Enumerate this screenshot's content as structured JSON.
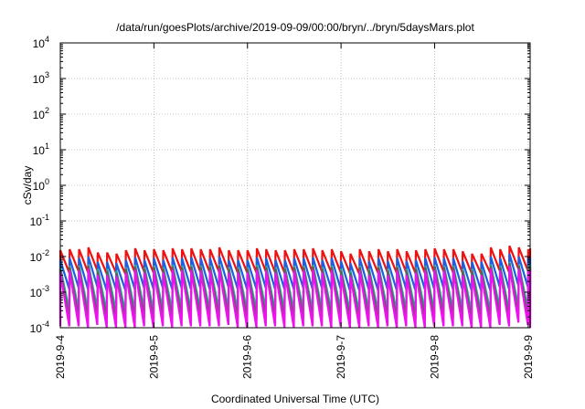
{
  "chart_data": {
    "type": "line",
    "title": "/data/run/goesPlots/archive/2019-09-09/00:00/bryn/../bryn/5daysMars.plot",
    "xlabel": "Coordinated Universal Time (UTC)",
    "ylabel": "cSv/day",
    "y_scale": "log",
    "ylim": [
      0.0001,
      10000
    ],
    "y_ticks": [
      {
        "value": 0.0001,
        "base": "10",
        "exp": "-4"
      },
      {
        "value": 0.001,
        "base": "10",
        "exp": "-3"
      },
      {
        "value": 0.01,
        "base": "10",
        "exp": "-2"
      },
      {
        "value": 0.1,
        "base": "10",
        "exp": "-1"
      },
      {
        "value": 1,
        "base": "10",
        "exp": "0"
      },
      {
        "value": 10,
        "base": "10",
        "exp": "1"
      },
      {
        "value": 100,
        "base": "10",
        "exp": "2"
      },
      {
        "value": 1000,
        "base": "10",
        "exp": "3"
      },
      {
        "value": 10000,
        "base": "10",
        "exp": "4"
      }
    ],
    "xlim": [
      "2019-09-04 00:00",
      "2019-09-09 00:30"
    ],
    "x_ticks": [
      "2019-9-4",
      "2019-9-5",
      "2019-9-6",
      "2019-9-7",
      "2019-9-8",
      "2019-9-9"
    ],
    "grid": true,
    "sawtooth_period_hours": 2.4,
    "series": [
      {
        "color": "#ee1111",
        "peaks": [
          0.015,
          0.016,
          0.016,
          0.018,
          0.013,
          0.013,
          0.012,
          0.015,
          0.017,
          0.015,
          0.016,
          0.015,
          0.017,
          0.016,
          0.017,
          0.016,
          0.016,
          0.018,
          0.015,
          0.015,
          0.015,
          0.017,
          0.016,
          0.015,
          0.015,
          0.016,
          0.016,
          0.017,
          0.015,
          0.016,
          0.014,
          0.012,
          0.016,
          0.014,
          0.016,
          0.014,
          0.016,
          0.014,
          0.015,
          0.016,
          0.017,
          0.016,
          0.016,
          0.014,
          0.012,
          0.012,
          0.018,
          0.016,
          0.02,
          0.018,
          0.016,
          0.015,
          0.016,
          0.017
        ],
        "troughs": [
          0.0035,
          0.0038,
          0.0036,
          0.004,
          0.0033,
          0.0035,
          0.0032,
          0.0036,
          0.0038,
          0.0035,
          0.0037,
          0.0036,
          0.0038,
          0.0036,
          0.0037,
          0.0036,
          0.0037,
          0.004,
          0.0035,
          0.0036,
          0.0035,
          0.0038,
          0.0036,
          0.0035,
          0.0035,
          0.0037,
          0.0036,
          0.0038,
          0.0035,
          0.0036,
          0.0034,
          0.0032,
          0.0036,
          0.0034,
          0.0036,
          0.0034,
          0.0036,
          0.0034,
          0.0035,
          0.0036,
          0.0038,
          0.0036,
          0.0036,
          0.0034,
          0.0033,
          0.0034,
          0.004,
          0.0036,
          0.0045,
          0.004,
          0.0036,
          0.0035,
          0.0036,
          0.0038
        ]
      },
      {
        "color": "#1d5fe0",
        "peaks": [
          0.008,
          0.009,
          0.009,
          0.01,
          0.007,
          0.007,
          0.0065,
          0.008,
          0.0095,
          0.008,
          0.009,
          0.008,
          0.0095,
          0.009,
          0.0095,
          0.009,
          0.009,
          0.01,
          0.008,
          0.008,
          0.008,
          0.0095,
          0.009,
          0.008,
          0.008,
          0.009,
          0.009,
          0.0095,
          0.008,
          0.009,
          0.0075,
          0.0065,
          0.009,
          0.0075,
          0.009,
          0.0075,
          0.009,
          0.0075,
          0.008,
          0.009,
          0.0095,
          0.009,
          0.009,
          0.0075,
          0.007,
          0.007,
          0.01,
          0.009,
          0.012,
          0.01,
          0.009,
          0.008,
          0.009,
          0.0095
        ],
        "troughs": [
          0.0012,
          0.0013,
          0.0012,
          0.0014,
          0.0011,
          0.0012,
          0.0011,
          0.0012,
          0.0013,
          0.0012,
          0.0013,
          0.0012,
          0.0013,
          0.0012,
          0.0013,
          0.0012,
          0.0013,
          0.0014,
          0.0012,
          0.0012,
          0.0012,
          0.0013,
          0.0012,
          0.0012,
          0.0012,
          0.0013,
          0.0012,
          0.0013,
          0.0012,
          0.0012,
          0.0011,
          0.0011,
          0.0012,
          0.0011,
          0.0012,
          0.0011,
          0.0012,
          0.0011,
          0.0012,
          0.0012,
          0.0013,
          0.0012,
          0.0012,
          0.0011,
          0.0011,
          0.0011,
          0.0014,
          0.0012,
          0.0015,
          0.0014,
          0.0012,
          0.0012,
          0.0012,
          0.0013
        ]
      },
      {
        "color": "#20b0a0",
        "peaks": [
          0.005,
          0.0055,
          0.0055,
          0.006,
          0.0045,
          0.0045,
          0.004,
          0.005,
          0.0058,
          0.005,
          0.0055,
          0.005,
          0.0058,
          0.0055,
          0.0058,
          0.0055,
          0.0055,
          0.006,
          0.005,
          0.005,
          0.005,
          0.0058,
          0.0055,
          0.005,
          0.005,
          0.0055,
          0.0055,
          0.0058,
          0.005,
          0.0055,
          0.0045,
          0.004,
          0.0055,
          0.0045,
          0.0055,
          0.0045,
          0.0055,
          0.0045,
          0.005,
          0.0055,
          0.0058,
          0.0055,
          0.0055,
          0.0045,
          0.0045,
          0.0045,
          0.006,
          0.0055,
          0.007,
          0.006,
          0.0055,
          0.005,
          0.0055,
          0.0058
        ],
        "troughs": [
          0.0003,
          0.00032,
          0.0003,
          0.00034,
          0.00028,
          0.0003,
          0.00027,
          0.0003,
          0.00032,
          0.0003,
          0.00031,
          0.0003,
          0.00032,
          0.0003,
          0.00032,
          0.0003,
          0.00031,
          0.00034,
          0.0003,
          0.0003,
          0.0003,
          0.00032,
          0.0003,
          0.0003,
          0.0003,
          0.00031,
          0.0003,
          0.00032,
          0.0003,
          0.0003,
          0.00028,
          0.00027,
          0.0003,
          0.00028,
          0.0003,
          0.00028,
          0.0003,
          0.00028,
          0.0003,
          0.0003,
          0.00032,
          0.0003,
          0.0003,
          0.00028,
          0.00028,
          0.00028,
          0.00034,
          0.0003,
          0.00038,
          0.00034,
          0.0003,
          0.0003,
          0.0003,
          0.00032
        ]
      },
      {
        "color": "#606060",
        "peaks": [
          0.0045,
          0.005,
          0.005,
          0.0055,
          0.004,
          0.004,
          0.0035,
          0.0045,
          0.0052,
          0.0045,
          0.005,
          0.0045,
          0.0052,
          0.005,
          0.0052,
          0.005,
          0.005,
          0.0055,
          0.0045,
          0.0045,
          0.0045,
          0.0052,
          0.005,
          0.0045,
          0.0045,
          0.005,
          0.005,
          0.0052,
          0.0045,
          0.005,
          0.004,
          0.0035,
          0.005,
          0.004,
          0.005,
          0.004,
          0.005,
          0.004,
          0.0045,
          0.005,
          0.0052,
          0.005,
          0.005,
          0.004,
          0.004,
          0.004,
          0.0055,
          0.005,
          0.0065,
          0.0055,
          0.005,
          0.0045,
          0.005,
          0.0052
        ],
        "troughs": [
          0.00018,
          0.0002,
          0.00019,
          0.00021,
          0.00017,
          0.00018,
          0.00016,
          0.00018,
          0.0002,
          0.00018,
          0.00019,
          0.00018,
          0.0002,
          0.00019,
          0.0002,
          0.00019,
          0.00019,
          0.00021,
          0.00018,
          0.00018,
          0.00018,
          0.0002,
          0.00019,
          0.00018,
          0.00018,
          0.00019,
          0.00019,
          0.0002,
          0.00018,
          0.00019,
          0.00017,
          0.00016,
          0.00019,
          0.00017,
          0.00019,
          0.00017,
          0.00019,
          0.00017,
          0.00018,
          0.00019,
          0.0002,
          0.00019,
          0.00019,
          0.00017,
          0.00017,
          0.00017,
          0.00021,
          0.00019,
          0.00024,
          0.00021,
          0.00019,
          0.00018,
          0.00019,
          0.0002
        ]
      },
      {
        "color": "#ee11ee",
        "peaks": [
          0.0035,
          0.004,
          0.004,
          0.0045,
          0.003,
          0.003,
          0.0028,
          0.0035,
          0.0042,
          0.0035,
          0.004,
          0.0035,
          0.0042,
          0.004,
          0.0042,
          0.004,
          0.004,
          0.0045,
          0.0035,
          0.0035,
          0.0035,
          0.0042,
          0.004,
          0.0035,
          0.0035,
          0.004,
          0.004,
          0.0042,
          0.0035,
          0.004,
          0.003,
          0.0028,
          0.004,
          0.003,
          0.004,
          0.003,
          0.004,
          0.003,
          0.0035,
          0.004,
          0.0042,
          0.004,
          0.004,
          0.003,
          0.003,
          0.003,
          0.0045,
          0.004,
          0.0055,
          0.0045,
          0.004,
          0.0035,
          0.004,
          0.0042
        ],
        "troughs": [
          0.00011,
          0.00011,
          0.0001,
          0.00012,
          0.0001,
          0.0001,
          0.0001,
          0.0001,
          0.00011,
          0.0001,
          0.00011,
          0.0001,
          0.00011,
          0.00011,
          0.00011,
          0.00011,
          0.00011,
          0.00012,
          0.0001,
          0.0001,
          0.0001,
          0.00011,
          0.00011,
          0.0001,
          0.0001,
          0.00011,
          0.00011,
          0.00011,
          0.0001,
          0.00011,
          0.0001,
          0.0001,
          0.00011,
          0.0001,
          0.00011,
          0.0001,
          0.00011,
          0.0001,
          0.0001,
          0.00011,
          0.00011,
          0.00011,
          0.00011,
          0.0001,
          0.0001,
          0.0001,
          0.00012,
          0.00011,
          0.00014,
          0.00012,
          0.00011,
          0.0001,
          0.00011,
          0.00011
        ]
      }
    ]
  }
}
